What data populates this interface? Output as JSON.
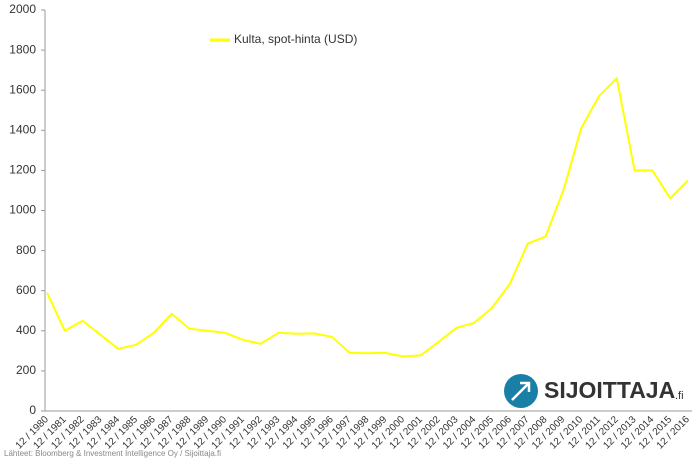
{
  "chart_data": {
    "type": "line",
    "categories": [
      "12 / 1980",
      "12 / 1981",
      "12 / 1982",
      "12 / 1983",
      "12 / 1984",
      "12 / 1985",
      "12 / 1986",
      "12 / 1987",
      "12 / 1988",
      "12 / 1989",
      "12 / 1990",
      "12 / 1991",
      "12 / 1992",
      "12 / 1993",
      "12 / 1994",
      "12 / 1995",
      "12 / 1996",
      "12 / 1997",
      "12 / 1998",
      "12 / 1999",
      "12 / 2000",
      "12 / 2001",
      "12 / 2002",
      "12 / 2003",
      "12 / 2004",
      "12 / 2005",
      "12 / 2006",
      "12 / 2007",
      "12 / 2008",
      "12 / 2009",
      "12 / 2010",
      "12 / 2011",
      "12 / 2012",
      "12 / 2013",
      "12 / 2014",
      "12 / 2015",
      "12 / 2016"
    ],
    "series": [
      {
        "name": "Kulta, spot-hinta (USD)",
        "color": "#ffff00",
        "values": [
          590,
          400,
          450,
          380,
          310,
          330,
          390,
          485,
          410,
          400,
          390,
          355,
          335,
          390,
          385,
          387,
          370,
          290,
          288,
          290,
          272,
          278,
          345,
          415,
          440,
          515,
          635,
          835,
          870,
          1100,
          1410,
          1570,
          1660,
          1200,
          1200,
          1060,
          1150
        ]
      }
    ],
    "ylim": [
      0,
      2000
    ],
    "yticks": [
      0,
      200,
      400,
      600,
      800,
      1000,
      1200,
      1400,
      1600,
      1800,
      2000
    ],
    "grid": false,
    "legend": "top",
    "source": "Lähteet: Bloomberg & Investment Intelligence Oy / Sijoittaja.fi",
    "logo": {
      "name": "SIJOITTAJA",
      "suffix": ".fi"
    }
  }
}
